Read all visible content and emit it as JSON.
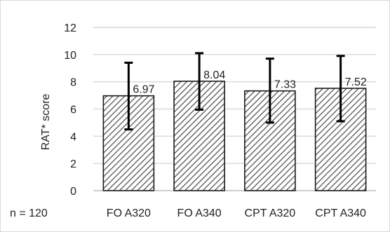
{
  "chart_data": {
    "type": "bar",
    "categories": [
      "FO A320",
      "FO A340",
      "CPT A320",
      "CPT A340"
    ],
    "values": [
      6.97,
      8.04,
      7.33,
      7.52
    ],
    "value_labels": [
      "6.97",
      "8.04",
      "7.33",
      "7.52"
    ],
    "error_bars": [
      {
        "low": 4.5,
        "high": 9.4
      },
      {
        "low": 5.95,
        "high": 10.1
      },
      {
        "low": 5.0,
        "high": 9.7
      },
      {
        "low": 5.1,
        "high": 9.9
      }
    ],
    "ylabel": "RAT* score",
    "xlabel": "",
    "ylim": [
      0,
      12
    ],
    "yticks": [
      0,
      2,
      4,
      6,
      8,
      10,
      12
    ],
    "grid": true,
    "legend": "none",
    "bar_pattern": "diagonal-hatch",
    "colors": {
      "bar_fill": "#ffffff",
      "hatch": "#555555",
      "bar_edge": "#1a1a1a",
      "grid": "#d9d9d9",
      "error_bar": "#000000"
    },
    "annotation": "n = 120"
  }
}
